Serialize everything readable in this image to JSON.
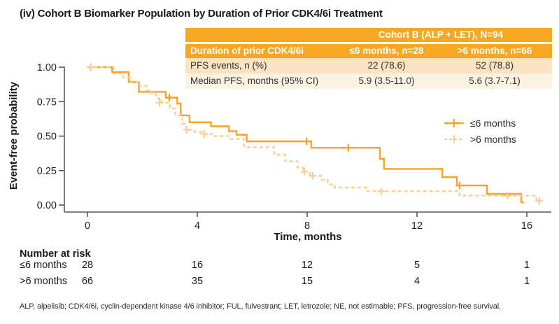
{
  "title": "(iv) Cohort B Biomarker Population by Duration of Prior CDK4/6i Treatment",
  "axis_color": "#58595B",
  "summary_table": {
    "banner": "Cohort B (ALP + LET), N=94",
    "header": [
      "Duration of prior CDK4/6i",
      "≤6 months, n=28",
      ">6 months, n=66"
    ],
    "rows": [
      [
        "PFS events, n (%)",
        "22 (78.6)",
        "52 (78.8)"
      ],
      [
        "Median PFS, months (95% CI)",
        "5.9 (3.5-11.0)",
        "5.6 (3.7-7.1)"
      ]
    ],
    "colors": {
      "header_bg": "#F7A823",
      "header_text": "#FFFFFF",
      "row1_bg": "#FAE3C2",
      "row2_bg": "#FCF2E2"
    }
  },
  "footnote": "ALP, alpelisib; CDK4/6i, cyclin-dependent kinase 4/6 inhibitor; FUL, fulvestrant; LET, letrozole; NE, not estimable; PFS, progression-free survival.",
  "chart_data": {
    "type": "line",
    "subtype": "kaplan-meier-step",
    "title": "(iv) Cohort B Biomarker Population by Duration of Prior CDK4/6i Treatment",
    "xlabel": "Time, months",
    "ylabel": "Event-free probability",
    "xlim": [
      0,
      16.8
    ],
    "ylim": [
      0,
      1.0
    ],
    "xticks": [
      0,
      4,
      8,
      12,
      16
    ],
    "ytick_values": [
      0,
      0.25,
      0.5,
      0.75,
      1
    ],
    "ytick_labels": [
      "0.00",
      "0.25",
      "0.50",
      "0.75",
      "1.00"
    ],
    "grid": false,
    "legend_position": "right-middle",
    "series": [
      {
        "name": "≤6 months",
        "n": 28,
        "line_style": "solid",
        "color": "#F5A41F",
        "steps": [
          [
            0,
            1.0
          ],
          [
            0.9,
            0.964
          ],
          [
            1.5,
            0.893
          ],
          [
            1.87,
            0.821
          ],
          [
            2.85,
            0.779
          ],
          [
            3.27,
            0.736
          ],
          [
            3.4,
            0.65
          ],
          [
            3.72,
            0.6
          ],
          [
            4.5,
            0.571
          ],
          [
            5.15,
            0.536
          ],
          [
            5.43,
            0.51
          ],
          [
            5.8,
            0.462
          ],
          [
            8.15,
            0.415
          ],
          [
            10.65,
            0.335
          ],
          [
            10.8,
            0.262
          ],
          [
            12.92,
            0.202
          ],
          [
            13.45,
            0.142
          ],
          [
            14.55,
            0.081
          ],
          [
            15.8,
            0.02
          ]
        ],
        "end_time": 15.9,
        "censor_marks": [
          [
            2.98,
            0.779
          ],
          [
            7.98,
            0.462
          ],
          [
            9.5,
            0.415
          ],
          [
            13.55,
            0.142
          ]
        ]
      },
      {
        "name": ">6 months",
        "n": 66,
        "line_style": "dashed",
        "color": "#F8CE92",
        "steps": [
          [
            0,
            1.0
          ],
          [
            0.95,
            0.955
          ],
          [
            1.3,
            0.924
          ],
          [
            1.6,
            0.894
          ],
          [
            1.9,
            0.864
          ],
          [
            2.15,
            0.833
          ],
          [
            2.35,
            0.803
          ],
          [
            2.5,
            0.773
          ],
          [
            2.7,
            0.742
          ],
          [
            3.0,
            0.7
          ],
          [
            3.2,
            0.65
          ],
          [
            3.45,
            0.59
          ],
          [
            3.6,
            0.545
          ],
          [
            3.9,
            0.53
          ],
          [
            4.2,
            0.515
          ],
          [
            4.55,
            0.5
          ],
          [
            5.2,
            0.48
          ],
          [
            5.7,
            0.42
          ],
          [
            6.8,
            0.365
          ],
          [
            7.2,
            0.318
          ],
          [
            7.65,
            0.272
          ],
          [
            7.85,
            0.242
          ],
          [
            8.1,
            0.212
          ],
          [
            8.5,
            0.182
          ],
          [
            8.75,
            0.15
          ],
          [
            9.0,
            0.127
          ],
          [
            10.15,
            0.1
          ],
          [
            13.55,
            0.068
          ],
          [
            16.35,
            0.03
          ]
        ],
        "end_time": 16.55,
        "censor_marks": [
          [
            0.12,
            1.0
          ],
          [
            2.62,
            0.742
          ],
          [
            3.62,
            0.545
          ],
          [
            4.25,
            0.515
          ],
          [
            7.9,
            0.242
          ],
          [
            8.2,
            0.212
          ],
          [
            10.7,
            0.1
          ],
          [
            15.3,
            0.068
          ],
          [
            16.45,
            0.03
          ]
        ]
      }
    ],
    "number_at_risk": {
      "title": "Number at risk",
      "times": [
        0,
        4,
        8,
        12,
        16
      ],
      "rows": [
        {
          "label": "≤6 months",
          "counts": [
            28,
            16,
            12,
            5,
            1
          ]
        },
        {
          "label": ">6 months",
          "counts": [
            66,
            35,
            15,
            4,
            1
          ]
        }
      ]
    }
  }
}
